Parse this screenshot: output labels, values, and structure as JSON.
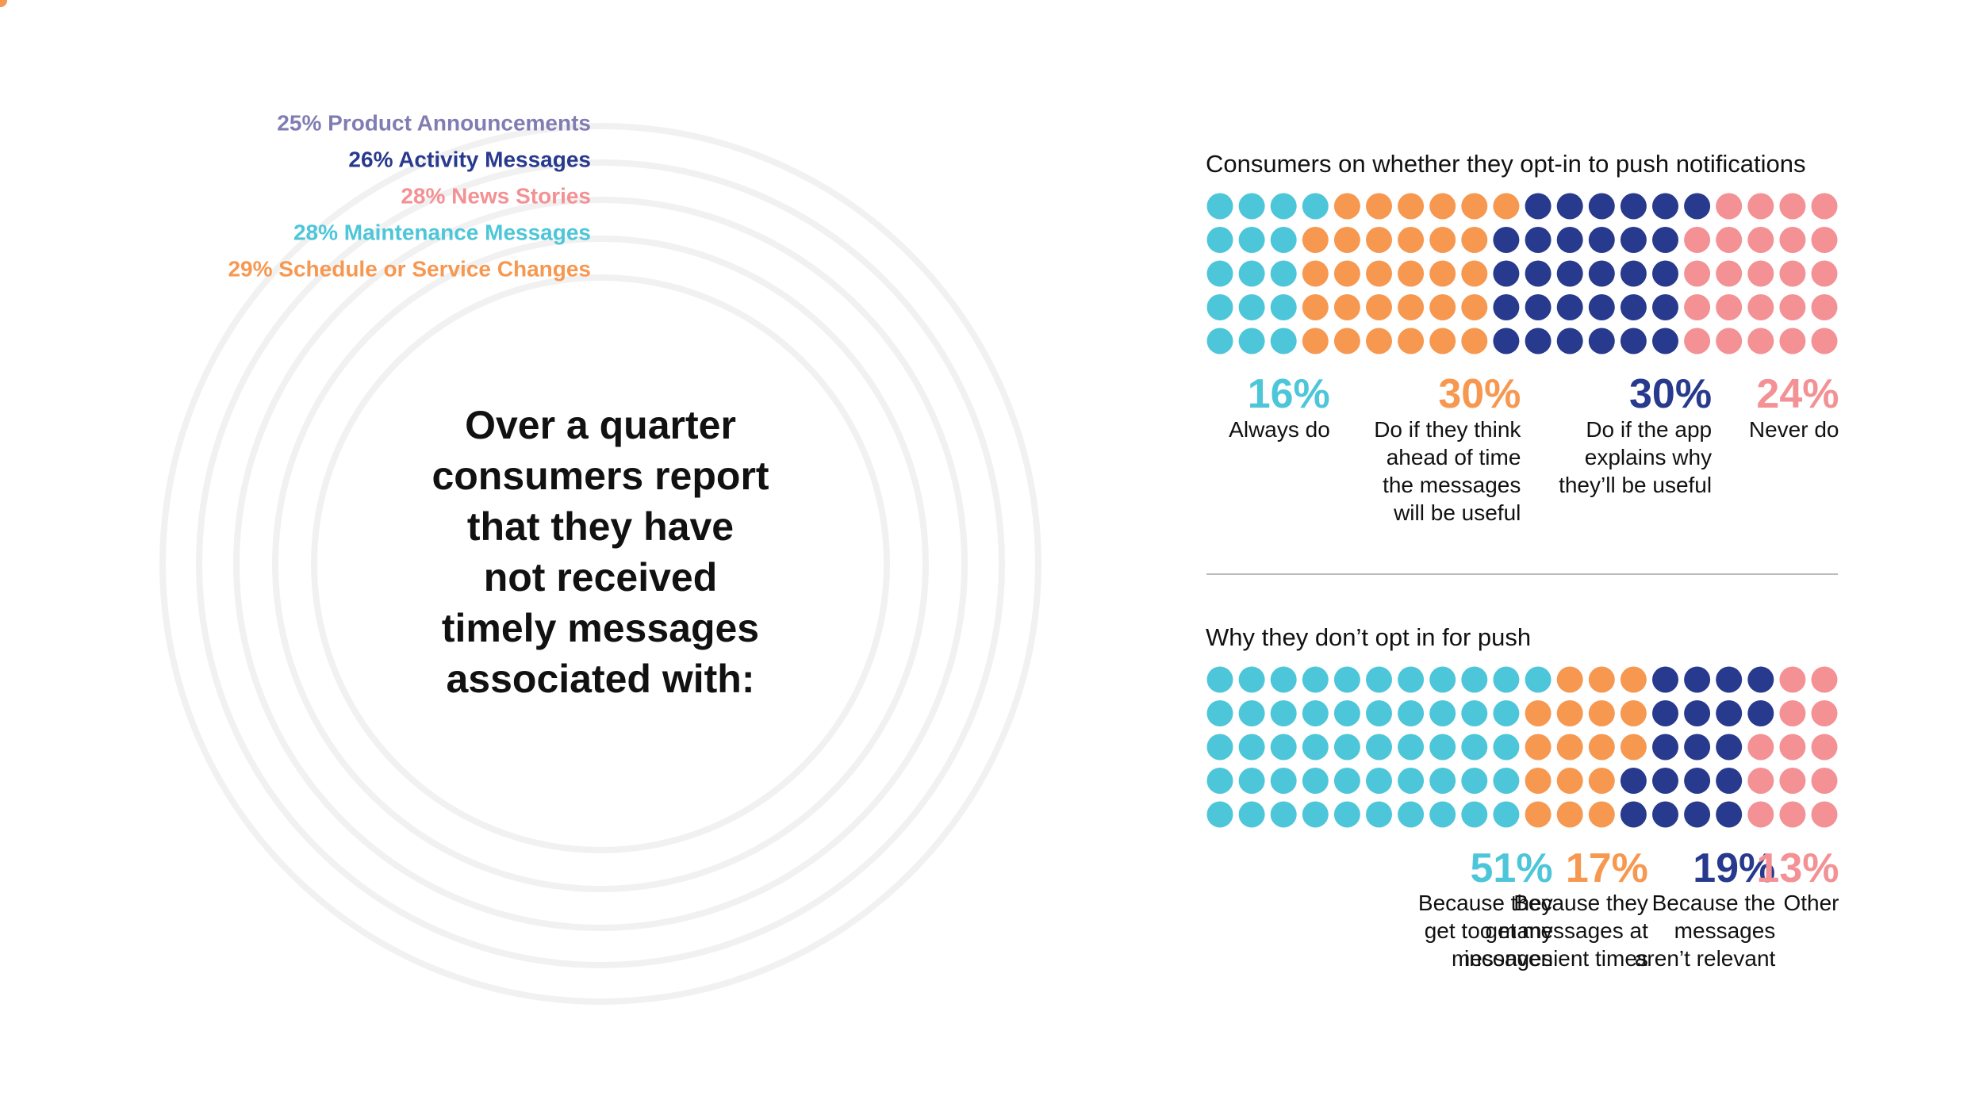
{
  "colors": {
    "purple": "#807db3",
    "navy": "#283a8d",
    "pink": "#f39194",
    "cyan": "#4ec6d9",
    "orange": "#f79851",
    "text": "#111111",
    "track": "#f1f1f1",
    "divider": "#bbbbbb"
  },
  "chart_data": [
    {
      "type": "radial-bar",
      "title_lines": [
        "Over a quarter",
        "consumers report",
        "that they have",
        "not received",
        "timely messages",
        "associated with:"
      ],
      "unit": "%",
      "series": [
        {
          "name": "Product Announcements",
          "value": 25,
          "label": "25% Product Announcements",
          "color": "#807db3"
        },
        {
          "name": "Activity Messages",
          "value": 26,
          "label": "26% Activity Messages",
          "color": "#283a8d"
        },
        {
          "name": "News Stories",
          "value": 28,
          "label": "28% News Stories",
          "color": "#f39194"
        },
        {
          "name": "Maintenance Messages",
          "value": 28,
          "label": "28% Maintenance Messages",
          "color": "#4ec6d9"
        },
        {
          "name": "Schedule or Service Changes",
          "value": 29,
          "label": "29% Schedule or Service Changes",
          "color": "#f79851"
        }
      ]
    },
    {
      "type": "waffle",
      "title": "Consumers on whether they opt-in to push notifications",
      "rows": 5,
      "columns": 20,
      "segments": [
        {
          "name": "Always do",
          "value": 16,
          "pct": "16%",
          "label_lines": [
            "Always do"
          ],
          "color": "#4ec6d9"
        },
        {
          "name": "Do if they think ahead of time the messages will be useful",
          "value": 30,
          "pct": "30%",
          "label_lines": [
            "Do if they think",
            "ahead of time",
            "the messages",
            "will be useful"
          ],
          "color": "#f79851"
        },
        {
          "name": "Do if the app explains why they'll be useful",
          "value": 30,
          "pct": "30%",
          "label_lines": [
            "Do if the app",
            "explains why",
            "they’ll be useful"
          ],
          "color": "#283a8d"
        },
        {
          "name": "Never do",
          "value": 24,
          "pct": "24%",
          "label_lines": [
            "Never do"
          ],
          "color": "#f39194"
        }
      ]
    },
    {
      "type": "waffle",
      "title": "Why they don’t opt in for push",
      "rows": 5,
      "columns": 20,
      "segments": [
        {
          "name": "Because they get too many messages",
          "value": 51,
          "pct": "51%",
          "label_lines": [
            "Because they",
            "get too many",
            "messages"
          ],
          "color": "#4ec6d9"
        },
        {
          "name": "Because they get messages at inconvenient times",
          "value": 17,
          "pct": "17%",
          "label_lines": [
            "Because they",
            "get messages at",
            "inconvenient times"
          ],
          "color": "#f79851"
        },
        {
          "name": "Because the messages aren't relevant",
          "value": 19,
          "pct": "19%",
          "label_lines": [
            "Because the",
            "messages",
            "aren’t relevant"
          ],
          "color": "#283a8d"
        },
        {
          "name": "Other",
          "value": 13,
          "pct": "13%",
          "label_lines": [
            "Other"
          ],
          "color": "#f39194"
        }
      ]
    }
  ]
}
